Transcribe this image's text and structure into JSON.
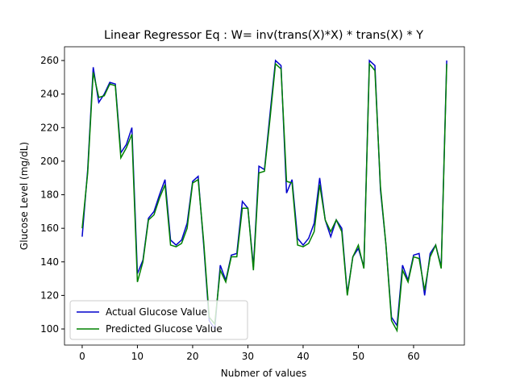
{
  "chart_data": {
    "type": "line",
    "title": "Linear Regressor Eq : W= inv(trans(X)*X) * trans(X) * Y",
    "x_label": "Nubmer of values",
    "y_label": "Glucose Level (mg/dL)",
    "x": [
      0,
      1,
      2,
      3,
      4,
      5,
      6,
      7,
      8,
      9,
      10,
      11,
      12,
      13,
      14,
      15,
      16,
      17,
      18,
      19,
      20,
      21,
      22,
      23,
      24,
      25,
      26,
      27,
      28,
      29,
      30,
      31,
      32,
      33,
      34,
      35,
      36,
      37,
      38,
      39,
      40,
      41,
      42,
      43,
      44,
      45,
      46,
      47,
      48,
      49,
      50,
      51,
      52,
      53,
      54,
      55,
      56,
      57,
      58,
      59,
      60,
      61,
      62,
      63,
      64,
      65,
      66
    ],
    "series": [
      {
        "name": "Actual Glucose Value",
        "color": "#0000cc",
        "values": [
          155,
          195,
          256,
          235,
          240,
          247,
          246,
          205,
          210,
          220,
          133,
          141,
          166,
          170,
          180,
          189,
          153,
          150,
          153,
          163,
          188,
          191,
          150,
          105,
          100,
          138,
          129,
          144,
          145,
          176,
          172,
          137,
          197,
          195,
          228,
          260,
          257,
          181,
          189,
          154,
          150,
          154,
          163,
          190,
          165,
          155,
          165,
          160,
          121,
          143,
          148,
          137,
          260,
          257,
          183,
          150,
          107,
          102,
          138,
          129,
          144,
          145,
          120,
          145,
          150,
          137,
          260
        ]
      },
      {
        "name": "Predicted Glucose Value",
        "color": "#008000",
        "values": [
          160,
          193,
          253,
          238,
          239,
          246,
          245,
          202,
          208,
          216,
          128,
          140,
          165,
          168,
          178,
          186,
          150,
          149,
          151,
          160,
          187,
          189,
          152,
          107,
          103,
          135,
          128,
          143,
          143,
          172,
          172,
          135,
          193,
          194,
          225,
          258,
          255,
          188,
          187,
          150,
          149,
          151,
          158,
          186,
          165,
          158,
          165,
          158,
          120,
          143,
          150,
          136,
          258,
          254,
          185,
          150,
          105,
          99,
          135,
          128,
          143,
          142,
          123,
          143,
          150,
          136,
          258
        ]
      }
    ],
    "xlim": [
      -3.2,
      69.2
    ],
    "ylim": [
      90.4,
      268.2
    ],
    "xticks": [
      0,
      10,
      20,
      30,
      40,
      50,
      60
    ],
    "yticks": [
      100,
      120,
      140,
      160,
      180,
      200,
      220,
      240,
      260
    ],
    "legend": "lower left"
  }
}
